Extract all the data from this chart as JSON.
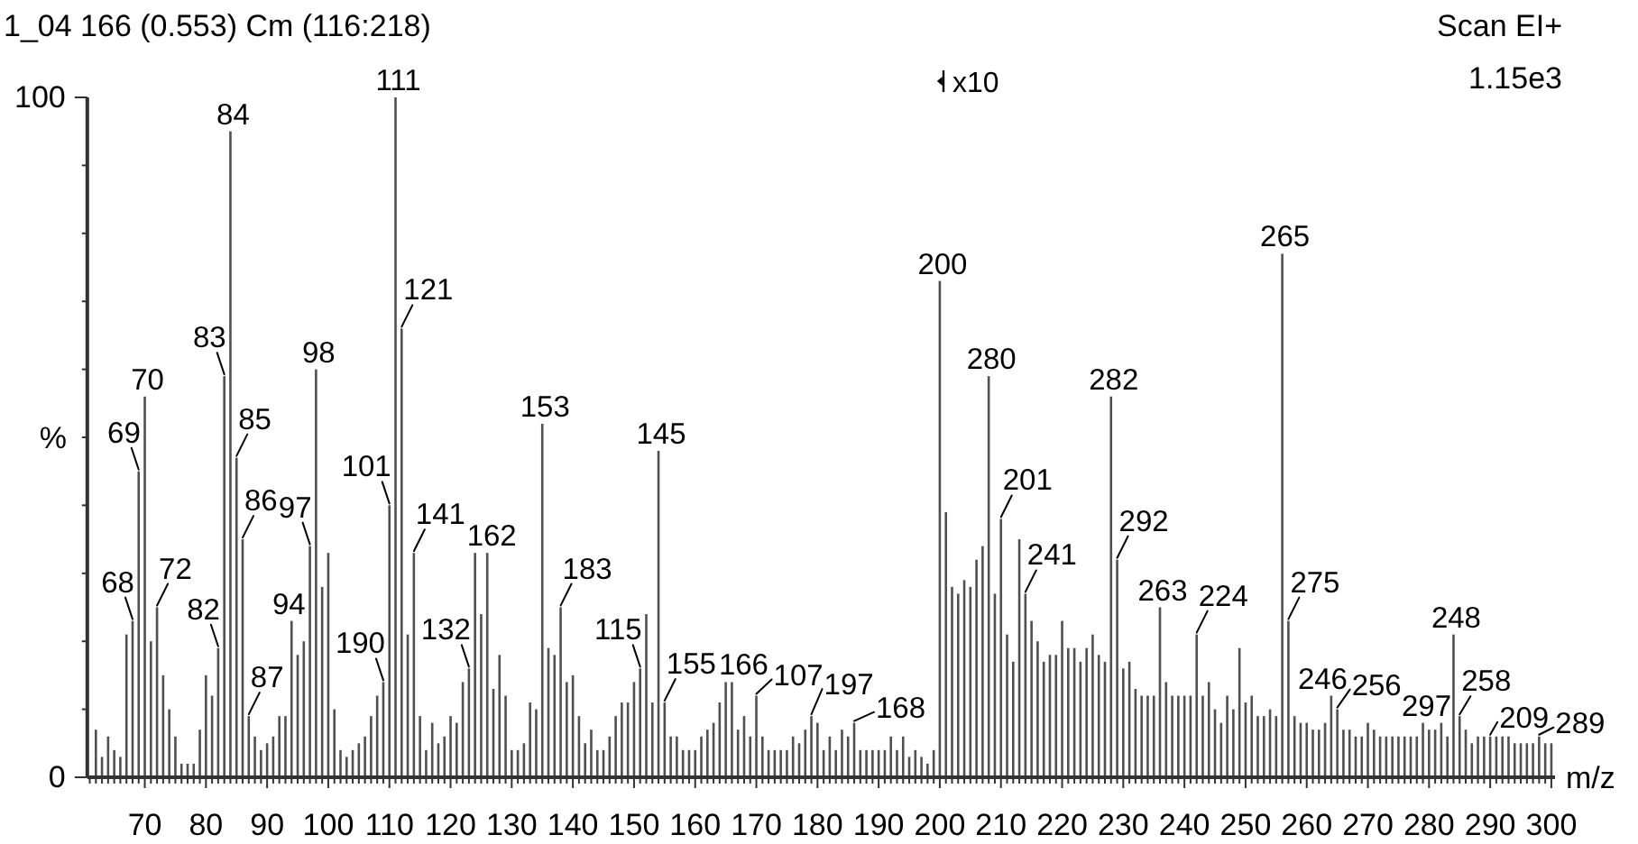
{
  "chart_data": {
    "type": "bar",
    "title": "1_04 166 (0.553) Cm (116:218)",
    "xlabel": "m/z",
    "ylabel": "%",
    "color": "#505050",
    "x": [
      62,
      63,
      64,
      65,
      66,
      67,
      68,
      69,
      70,
      71,
      72,
      73,
      74,
      75,
      76,
      77,
      78,
      79,
      80,
      81,
      82,
      83,
      84,
      85,
      86,
      87,
      88,
      89,
      90,
      91,
      92,
      93,
      94,
      95,
      96,
      97,
      98,
      99,
      100,
      101,
      102,
      103,
      104,
      105,
      106,
      107,
      108,
      109,
      110,
      111,
      112,
      113,
      114,
      115,
      116,
      117,
      118,
      119,
      120,
      121,
      122,
      123,
      124,
      125,
      126,
      127,
      128,
      129,
      130,
      131,
      132,
      133,
      134,
      135,
      136,
      137,
      138,
      139,
      140,
      141,
      142,
      143,
      144,
      145,
      146,
      147,
      148,
      149,
      150,
      151,
      152,
      153,
      154,
      155,
      156,
      157,
      158,
      159,
      160,
      161,
      162,
      163,
      164,
      165,
      166,
      167,
      168,
      169,
      170,
      171,
      172,
      173,
      174,
      175,
      176,
      177,
      178,
      179,
      180,
      181,
      182,
      183,
      184,
      185,
      186,
      187,
      188,
      189,
      190,
      191,
      192,
      193,
      194,
      195,
      196,
      197,
      198,
      199,
      200,
      201,
      202,
      203,
      204,
      205,
      206,
      207,
      208,
      209,
      210,
      211,
      212,
      213,
      214,
      215,
      216,
      217,
      218,
      219,
      220,
      221,
      222,
      223,
      224,
      225,
      226,
      227,
      228,
      229,
      230,
      231,
      232,
      233,
      234,
      235,
      236,
      237,
      238,
      239,
      240,
      241,
      242,
      243,
      244,
      245,
      246,
      247,
      248,
      249,
      250,
      251,
      252,
      253,
      254,
      255,
      256,
      257,
      258,
      259,
      260,
      261,
      262,
      263,
      264,
      265,
      266,
      267,
      268,
      269,
      270,
      271,
      272,
      273,
      274,
      275,
      276,
      277,
      278,
      279,
      280,
      281,
      282,
      283,
      284,
      285,
      286,
      287,
      288,
      289,
      290,
      291,
      292,
      293,
      294,
      295,
      296,
      297,
      298,
      299,
      300
    ],
    "values": [
      7,
      3,
      6,
      4,
      3,
      21,
      23,
      45,
      56,
      20,
      25,
      15,
      10,
      6,
      2,
      2,
      2,
      7,
      15,
      12,
      19,
      59,
      95,
      47,
      35,
      9,
      6,
      4,
      5,
      6,
      9,
      9,
      23,
      18,
      20,
      34,
      60,
      28,
      33,
      10,
      4,
      3,
      4,
      5,
      6,
      9,
      12,
      14,
      40,
      100,
      66,
      21,
      33,
      9,
      4,
      8,
      5,
      6,
      9,
      8,
      14,
      16,
      33,
      24,
      33,
      13,
      18,
      12,
      4,
      4,
      5,
      11,
      10,
      52,
      19,
      18,
      25,
      14,
      15,
      9,
      5,
      7,
      4,
      4,
      6,
      9,
      11,
      11,
      14,
      16,
      24,
      11,
      48,
      11,
      6,
      6,
      4,
      4,
      4,
      6,
      7,
      8,
      11,
      14,
      14,
      7,
      9,
      6,
      12,
      6,
      4,
      4,
      4,
      4,
      6,
      5,
      7,
      9,
      8,
      4,
      6,
      4,
      7,
      6,
      8,
      4,
      4,
      4,
      4,
      4,
      6,
      4,
      6,
      3,
      4,
      3,
      2,
      4,
      73,
      39,
      28,
      27,
      29,
      28,
      32,
      34,
      59,
      27,
      38,
      21,
      17,
      35,
      27,
      23,
      20,
      17,
      18,
      18,
      23,
      19,
      19,
      17,
      19,
      21,
      18,
      17,
      56,
      32,
      16,
      17,
      13,
      12,
      12,
      12,
      25,
      14,
      12,
      12,
      12,
      12,
      21,
      12,
      14,
      10,
      8,
      12,
      10,
      19,
      11,
      12,
      9,
      9,
      10,
      9,
      77,
      23,
      9,
      8,
      8,
      7,
      7,
      8,
      12,
      10,
      7,
      7,
      6,
      6,
      8,
      7,
      6,
      6,
      6,
      6,
      6,
      6,
      6,
      8,
      7,
      7,
      8,
      6,
      21,
      9,
      7,
      5,
      6,
      6,
      6,
      6,
      6,
      6,
      5,
      5,
      5,
      5,
      6,
      5,
      5
    ],
    "xlim": [
      60.6,
      300.6
    ],
    "xticks": [
      {
        "value": 61,
        "label": null
      },
      {
        "value": 62,
        "label": null
      },
      {
        "value": 63,
        "label": null
      },
      {
        "value": 64,
        "label": null
      },
      {
        "value": 65,
        "label": null
      },
      {
        "value": 66,
        "label": null
      },
      {
        "value": 67,
        "label": null
      },
      {
        "value": 68,
        "label": null
      },
      {
        "value": 69,
        "label": null
      },
      70,
      {
        "value": 71,
        "label": null
      },
      {
        "value": 72,
        "label": null
      },
      {
        "value": 73,
        "label": null
      },
      {
        "value": 74,
        "label": null
      },
      {
        "value": 75,
        "label": null
      },
      {
        "value": 76,
        "label": null
      },
      {
        "value": 77,
        "label": null
      },
      {
        "value": 78,
        "label": null
      },
      {
        "value": 79,
        "label": null
      },
      80,
      {
        "value": 81,
        "label": null
      },
      {
        "value": 82,
        "label": null
      },
      {
        "value": 83,
        "label": null
      },
      {
        "value": 84,
        "label": null
      },
      {
        "value": 85,
        "label": null
      },
      {
        "value": 86,
        "label": null
      },
      {
        "value": 87,
        "label": null
      },
      {
        "value": 88,
        "label": null
      },
      {
        "value": 89,
        "label": null
      },
      90,
      {
        "value": 91,
        "label": null
      },
      {
        "value": 92,
        "label": null
      },
      {
        "value": 93,
        "label": null
      },
      {
        "value": 94,
        "label": null
      },
      {
        "value": 95,
        "label": null
      },
      {
        "value": 96,
        "label": null
      },
      {
        "value": 97,
        "label": null
      },
      {
        "value": 98,
        "label": null
      },
      {
        "value": 99,
        "label": null
      },
      100,
      {
        "value": 101,
        "label": null
      },
      {
        "value": 102,
        "label": null
      },
      {
        "value": 103,
        "label": null
      },
      {
        "value": 104,
        "label": null
      },
      {
        "value": 105,
        "label": null
      },
      {
        "value": 106,
        "label": null
      },
      {
        "value": 107,
        "label": null
      },
      {
        "value": 108,
        "label": null
      },
      {
        "value": 109,
        "label": null
      },
      110,
      {
        "value": 111,
        "label": null
      },
      {
        "value": 112,
        "label": null
      },
      {
        "value": 113,
        "label": null
      },
      {
        "value": 114,
        "label": null
      },
      {
        "value": 115,
        "label": null
      },
      {
        "value": 116,
        "label": null
      },
      {
        "value": 117,
        "label": null
      },
      {
        "value": 118,
        "label": null
      },
      {
        "value": 119,
        "label": null
      },
      120,
      {
        "value": 121,
        "label": null
      },
      {
        "value": 122,
        "label": null
      },
      {
        "value": 123,
        "label": null
      },
      {
        "value": 124,
        "label": null
      },
      {
        "value": 125,
        "label": null
      },
      {
        "value": 126,
        "label": null
      },
      {
        "value": 127,
        "label": null
      },
      {
        "value": 128,
        "label": null
      },
      {
        "value": 129,
        "label": null
      },
      130,
      {
        "value": 131,
        "label": null
      },
      {
        "value": 132,
        "label": null
      },
      {
        "value": 133,
        "label": null
      },
      {
        "value": 134,
        "label": null
      },
      {
        "value": 135,
        "label": null
      },
      {
        "value": 136,
        "label": null
      },
      {
        "value": 137,
        "label": null
      },
      {
        "value": 138,
        "label": null
      },
      {
        "value": 139,
        "label": null
      },
      140,
      {
        "value": 141,
        "label": null
      },
      {
        "value": 142,
        "label": null
      },
      {
        "value": 143,
        "label": null
      },
      {
        "value": 144,
        "label": null
      },
      {
        "value": 145,
        "label": null
      },
      {
        "value": 146,
        "label": null
      },
      {
        "value": 147,
        "label": null
      },
      {
        "value": 148,
        "label": null
      },
      {
        "value": 149,
        "label": null
      },
      150,
      {
        "value": 151,
        "label": null
      },
      {
        "value": 152,
        "label": null
      },
      {
        "value": 153,
        "label": null
      },
      {
        "value": 154,
        "label": null
      },
      {
        "value": 155,
        "label": null
      },
      {
        "value": 156,
        "label": null
      },
      {
        "value": 157,
        "label": null
      },
      {
        "value": 158,
        "label": null
      },
      {
        "value": 159,
        "label": null
      },
      160,
      {
        "value": 161,
        "label": null
      },
      {
        "value": 162,
        "label": null
      },
      {
        "value": 163,
        "label": null
      },
      {
        "value": 164,
        "label": null
      },
      {
        "value": 165,
        "label": null
      },
      {
        "value": 166,
        "label": null
      },
      {
        "value": 167,
        "label": null
      },
      {
        "value": 168,
        "label": null
      },
      {
        "value": 169,
        "label": null
      },
      170,
      {
        "value": 171,
        "label": null
      },
      {
        "value": 172,
        "label": null
      },
      {
        "value": 173,
        "label": null
      },
      {
        "value": 174,
        "label": null
      },
      {
        "value": 175,
        "label": null
      },
      {
        "value": 176,
        "label": null
      },
      {
        "value": 177,
        "label": null
      },
      {
        "value": 178,
        "label": null
      },
      {
        "value": 179,
        "label": null
      },
      180,
      {
        "value": 181,
        "label": null
      },
      {
        "value": 182,
        "label": null
      },
      {
        "value": 183,
        "label": null
      },
      {
        "value": 184,
        "label": null
      },
      {
        "value": 185,
        "label": null
      },
      {
        "value": 186,
        "label": null
      },
      {
        "value": 187,
        "label": null
      },
      {
        "value": 188,
        "label": null
      },
      {
        "value": 189,
        "label": null
      },
      190,
      {
        "value": 191,
        "label": null
      },
      {
        "value": 192,
        "label": null
      },
      {
        "value": 193,
        "label": null
      },
      {
        "value": 194,
        "label": null
      },
      {
        "value": 195,
        "label": null
      },
      {
        "value": 196,
        "label": null
      },
      {
        "value": 197,
        "label": null
      },
      {
        "value": 198,
        "label": null
      },
      {
        "value": 199,
        "label": null
      },
      200,
      {
        "value": 201,
        "label": null
      },
      {
        "value": 202,
        "label": null
      },
      {
        "value": 203,
        "label": null
      },
      {
        "value": 204,
        "label": null
      },
      {
        "value": 205,
        "label": null
      },
      {
        "value": 206,
        "label": null
      },
      {
        "value": 207,
        "label": null
      },
      {
        "value": 208,
        "label": null
      },
      {
        "value": 209,
        "label": null
      },
      210,
      {
        "value": 211,
        "label": null
      },
      {
        "value": 212,
        "label": null
      },
      {
        "value": 213,
        "label": null
      },
      {
        "value": 214,
        "label": null
      },
      {
        "value": 215,
        "label": null
      },
      {
        "value": 216,
        "label": null
      },
      {
        "value": 217,
        "label": null
      },
      {
        "value": 218,
        "label": null
      },
      {
        "value": 219,
        "label": null
      },
      220,
      {
        "value": 221,
        "label": null
      },
      {
        "value": 222,
        "label": null
      },
      {
        "value": 223,
        "label": null
      },
      {
        "value": 224,
        "label": null
      },
      {
        "value": 225,
        "label": null
      },
      {
        "value": 226,
        "label": null
      },
      {
        "value": 227,
        "label": null
      },
      {
        "value": 228,
        "label": null
      },
      {
        "value": 229,
        "label": null
      },
      230,
      {
        "value": 231,
        "label": null
      },
      {
        "value": 232,
        "label": null
      },
      {
        "value": 233,
        "label": null
      },
      {
        "value": 234,
        "label": null
      },
      {
        "value": 235,
        "label": null
      },
      {
        "value": 236,
        "label": null
      },
      {
        "value": 237,
        "label": null
      },
      {
        "value": 238,
        "label": null
      },
      {
        "value": 239,
        "label": null
      },
      240,
      {
        "value": 241,
        "label": null
      },
      {
        "value": 242,
        "label": null
      },
      {
        "value": 243,
        "label": null
      },
      {
        "value": 244,
        "label": null
      },
      {
        "value": 245,
        "label": null
      },
      {
        "value": 246,
        "label": null
      },
      {
        "value": 247,
        "label": null
      },
      {
        "value": 248,
        "label": null
      },
      {
        "value": 249,
        "label": null
      },
      250,
      {
        "value": 251,
        "label": null
      },
      {
        "value": 252,
        "label": null
      },
      {
        "value": 253,
        "label": null
      },
      {
        "value": 254,
        "label": null
      },
      {
        "value": 255,
        "label": null
      },
      {
        "value": 256,
        "label": null
      },
      {
        "value": 257,
        "label": null
      },
      {
        "value": 258,
        "label": null
      },
      {
        "value": 259,
        "label": null
      },
      260,
      {
        "value": 261,
        "label": null
      },
      {
        "value": 262,
        "label": null
      },
      {
        "value": 263,
        "label": null
      },
      {
        "value": 264,
        "label": null
      },
      {
        "value": 265,
        "label": null
      },
      {
        "value": 266,
        "label": null
      },
      {
        "value": 267,
        "label": null
      },
      {
        "value": 268,
        "label": null
      },
      {
        "value": 269,
        "label": null
      },
      270,
      {
        "value": 271,
        "label": null
      },
      {
        "value": 272,
        "label": null
      },
      {
        "value": 273,
        "label": null
      },
      {
        "value": 274,
        "label": null
      },
      {
        "value": 275,
        "label": null
      },
      {
        "value": 276,
        "label": null
      },
      {
        "value": 277,
        "label": null
      },
      {
        "value": 278,
        "label": null
      },
      {
        "value": 279,
        "label": null
      },
      280,
      {
        "value": 281,
        "label": null
      },
      {
        "value": 282,
        "label": null
      },
      {
        "value": 283,
        "label": null
      },
      {
        "value": 284,
        "label": null
      },
      {
        "value": 285,
        "label": null
      },
      {
        "value": 286,
        "label": null
      },
      {
        "value": 287,
        "label": null
      },
      {
        "value": 288,
        "label": null
      },
      {
        "value": 289,
        "label": null
      },
      290,
      {
        "value": 291,
        "label": null
      },
      {
        "value": 292,
        "label": null
      },
      {
        "value": 293,
        "label": null
      },
      {
        "value": 294,
        "label": null
      },
      {
        "value": 295,
        "label": null
      },
      {
        "value": 296,
        "label": null
      },
      {
        "value": 297,
        "label": null
      },
      {
        "value": 298,
        "label": null
      },
      {
        "value": 299,
        "label": null
      },
      300
    ],
    "ylim": [
      0,
      100
    ],
    "yticks": [
      0,
      {
        "value": 10,
        "label": null
      },
      {
        "value": 20,
        "label": null
      },
      {
        "value": 30,
        "label": null
      },
      {
        "value": 40,
        "label": null
      },
      {
        "value": 50,
        "label": null
      },
      {
        "value": 60,
        "label": null
      },
      {
        "value": 70,
        "label": null
      },
      {
        "value": 80,
        "label": null
      },
      {
        "value": 90,
        "label": null
      },
      100
    ],
    "annotations": [
      "Scan EI+",
      "1.15e3",
      "x10",
      {
        "text": "68",
        "x": 68,
        "y": 23
      },
      {
        "text": "69",
        "x": 69,
        "y": 45
      },
      {
        "text": "70",
        "x": 70,
        "y": 56
      },
      {
        "text": "72",
        "x": 72,
        "y": 25
      },
      {
        "text": "82",
        "x": 82,
        "y": 19
      },
      {
        "text": "83",
        "x": 83,
        "y": 59
      },
      {
        "text": "84",
        "x": 84,
        "y": 95
      },
      {
        "text": "85",
        "x": 85,
        "y": 47
      },
      {
        "text": "86",
        "x": 86,
        "y": 35
      },
      {
        "text": "87",
        "x": 87,
        "y": 9
      },
      {
        "text": "94",
        "x": 94,
        "y": 23
      },
      {
        "text": "97",
        "x": 97,
        "y": 34
      },
      {
        "text": "98",
        "x": 98,
        "y": 60
      },
      {
        "text": "190",
        "x": 109,
        "y": 14
      },
      {
        "text": "101",
        "x": 110,
        "y": 40
      },
      {
        "text": "111",
        "x": 111,
        "y": 100
      },
      {
        "text": "121",
        "x": 112,
        "y": 66
      },
      {
        "text": "141",
        "x": 114,
        "y": 33
      },
      {
        "text": "132",
        "x": 123,
        "y": 16
      },
      {
        "text": "162",
        "x": 126,
        "y": 33
      },
      {
        "text": "153",
        "x": 135,
        "y": 52
      },
      {
        "text": "183",
        "x": 138,
        "y": 25
      },
      {
        "text": "115",
        "x": 151,
        "y": 16
      },
      {
        "text": "145",
        "x": 154,
        "y": 48
      },
      {
        "text": "155",
        "x": 155,
        "y": 11
      },
      {
        "text": "166",
        "x": 166,
        "y": 14
      },
      {
        "text": "107",
        "x": 170,
        "y": 12
      },
      {
        "text": "197",
        "x": 179,
        "y": 9
      },
      {
        "text": "168",
        "x": 186,
        "y": 8
      },
      {
        "text": "200",
        "x": 200,
        "y": 73
      },
      {
        "text": "280",
        "x": 208,
        "y": 59
      },
      {
        "text": "201",
        "x": 210,
        "y": 38
      },
      {
        "text": "241",
        "x": 214,
        "y": 27
      },
      {
        "text": "282",
        "x": 228,
        "y": 56
      },
      {
        "text": "292",
        "x": 229,
        "y": 32
      },
      {
        "text": "263",
        "x": 236,
        "y": 25
      },
      {
        "text": "224",
        "x": 242,
        "y": 21
      },
      {
        "text": "265",
        "x": 256,
        "y": 77
      },
      {
        "text": "275",
        "x": 257,
        "y": 23
      },
      {
        "text": "246",
        "x": 264,
        "y": 12
      },
      {
        "text": "256",
        "x": 265,
        "y": 10
      },
      {
        "text": "297",
        "x": 279,
        "y": 8
      },
      {
        "text": "248",
        "x": 284,
        "y": 21
      },
      {
        "text": "258",
        "x": 285,
        "y": 9
      },
      {
        "text": "209",
        "x": 290,
        "y": 6
      },
      {
        "text": "289",
        "x": 298,
        "y": 6
      }
    ]
  }
}
